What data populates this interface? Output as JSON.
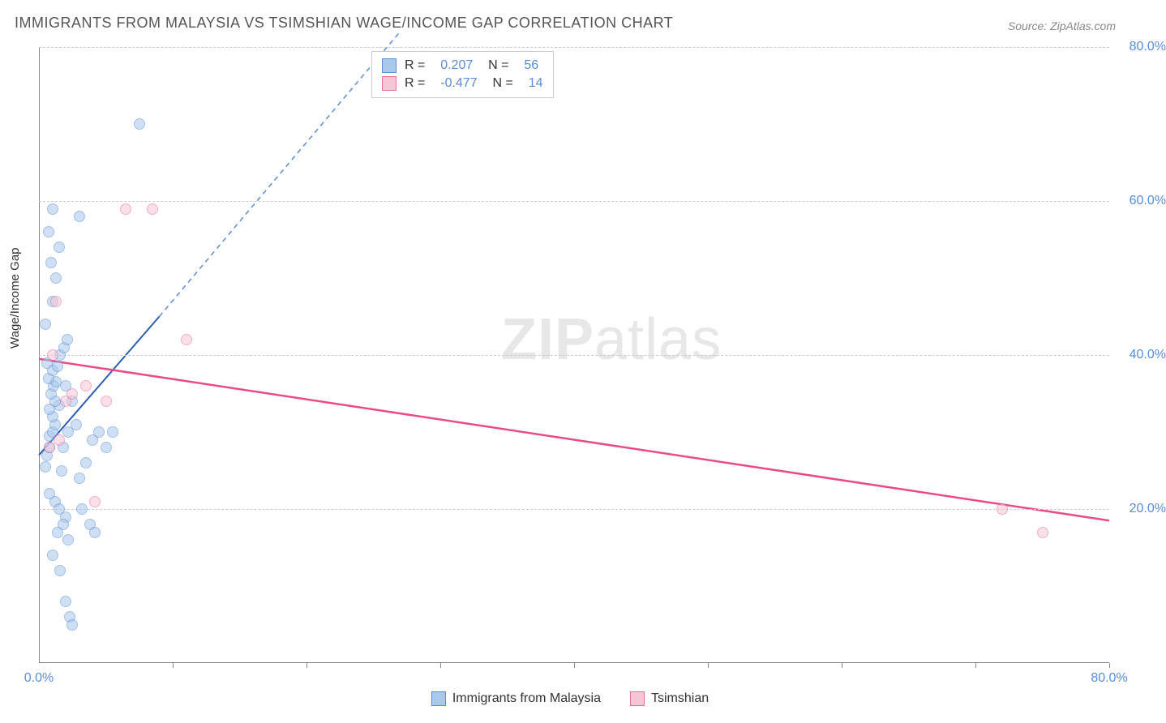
{
  "title": "IMMIGRANTS FROM MALAYSIA VS TSIMSHIAN WAGE/INCOME GAP CORRELATION CHART",
  "source": "Source: ZipAtlas.com",
  "watermark_zip": "ZIP",
  "watermark_atlas": "atlas",
  "chart": {
    "type": "scatter",
    "ylabel": "Wage/Income Gap",
    "background_color": "#ffffff",
    "grid_color": "#cccccc",
    "axis_color": "#888888",
    "label_color": "#5b8dd6",
    "text_color": "#333333",
    "title_fontsize": 18,
    "label_fontsize": 15,
    "tick_fontsize": 16,
    "xlim": [
      0,
      80
    ],
    "ylim": [
      0,
      80
    ],
    "yticks": [
      20,
      40,
      60,
      80
    ],
    "ytick_labels": [
      "20.0%",
      "40.0%",
      "60.0%",
      "80.0%"
    ],
    "xticks": [
      0,
      20,
      40,
      60,
      80
    ],
    "xtick_labels": [
      "0.0%",
      "",
      "",
      "",
      "80.0%"
    ],
    "xtick_minor": [
      10,
      20,
      30,
      40,
      50,
      60,
      70,
      80
    ],
    "marker_radius": 7,
    "marker_opacity": 0.55,
    "series": [
      {
        "name": "Immigrants from Malaysia",
        "key": "malaysia",
        "fill_color": "#a8c8ec",
        "stroke_color": "#5b8dd6",
        "R": "0.207",
        "N": "56",
        "points": [
          [
            0.5,
            25.5
          ],
          [
            0.6,
            27
          ],
          [
            0.8,
            28
          ],
          [
            0.8,
            29.5
          ],
          [
            1.0,
            30
          ],
          [
            1.2,
            31
          ],
          [
            1.0,
            32
          ],
          [
            0.8,
            33
          ],
          [
            1.5,
            33.5
          ],
          [
            1.2,
            34
          ],
          [
            0.9,
            35
          ],
          [
            1.1,
            36
          ],
          [
            1.3,
            36.5
          ],
          [
            0.7,
            37
          ],
          [
            1.0,
            38
          ],
          [
            1.4,
            38.5
          ],
          [
            0.6,
            39
          ],
          [
            1.8,
            28
          ],
          [
            2.2,
            30
          ],
          [
            2.5,
            34
          ],
          [
            2.0,
            36
          ],
          [
            1.6,
            40
          ],
          [
            1.9,
            41
          ],
          [
            2.1,
            42
          ],
          [
            0.5,
            44
          ],
          [
            1.0,
            47
          ],
          [
            1.3,
            50
          ],
          [
            0.9,
            52
          ],
          [
            1.5,
            54
          ],
          [
            0.7,
            56
          ],
          [
            3.0,
            58
          ],
          [
            1.0,
            59
          ],
          [
            7.5,
            70
          ],
          [
            0.8,
            22
          ],
          [
            1.2,
            21
          ],
          [
            1.5,
            20
          ],
          [
            2.0,
            19
          ],
          [
            1.8,
            18
          ],
          [
            1.4,
            17
          ],
          [
            2.2,
            16
          ],
          [
            1.0,
            14
          ],
          [
            1.6,
            12
          ],
          [
            2.0,
            8
          ],
          [
            2.3,
            6
          ],
          [
            2.5,
            5
          ],
          [
            3.0,
            24
          ],
          [
            3.5,
            26
          ],
          [
            4.0,
            29
          ],
          [
            4.5,
            30
          ],
          [
            5.0,
            28
          ],
          [
            3.2,
            20
          ],
          [
            3.8,
            18
          ],
          [
            4.2,
            17
          ],
          [
            5.5,
            30
          ],
          [
            1.7,
            25
          ],
          [
            2.8,
            31
          ]
        ],
        "trend": {
          "x1": 0,
          "y1": 27,
          "x2": 9,
          "y2": 45,
          "color": "#2a5db0",
          "width": 2,
          "dash": "none"
        },
        "trend_ext": {
          "x1": 9,
          "y1": 45,
          "x2": 27,
          "y2": 82,
          "color": "#5b8dd6",
          "width": 1.5,
          "dash": "6,5"
        }
      },
      {
        "name": "Tsimshian",
        "key": "tsimshian",
        "fill_color": "#f5c6d6",
        "stroke_color": "#e670a0",
        "R": "-0.477",
        "N": "14",
        "points": [
          [
            0.8,
            28
          ],
          [
            1.5,
            29
          ],
          [
            2.0,
            34
          ],
          [
            2.5,
            35
          ],
          [
            3.5,
            36
          ],
          [
            1.0,
            40
          ],
          [
            1.3,
            47
          ],
          [
            5.0,
            34
          ],
          [
            6.5,
            59
          ],
          [
            8.5,
            59
          ],
          [
            11.0,
            42
          ],
          [
            4.2,
            21
          ],
          [
            72.0,
            20
          ],
          [
            75.0,
            17
          ]
        ],
        "trend": {
          "x1": 0,
          "y1": 39.5,
          "x2": 80,
          "y2": 18.5,
          "color": "#e94b86",
          "width": 2.5,
          "dash": "none"
        }
      }
    ]
  },
  "legend": {
    "items": [
      {
        "label": "Immigrants from Malaysia",
        "fill": "#a8c8ec",
        "stroke": "#5b8dd6"
      },
      {
        "label": "Tsimshian",
        "fill": "#f5c6d6",
        "stroke": "#e670a0"
      }
    ]
  }
}
